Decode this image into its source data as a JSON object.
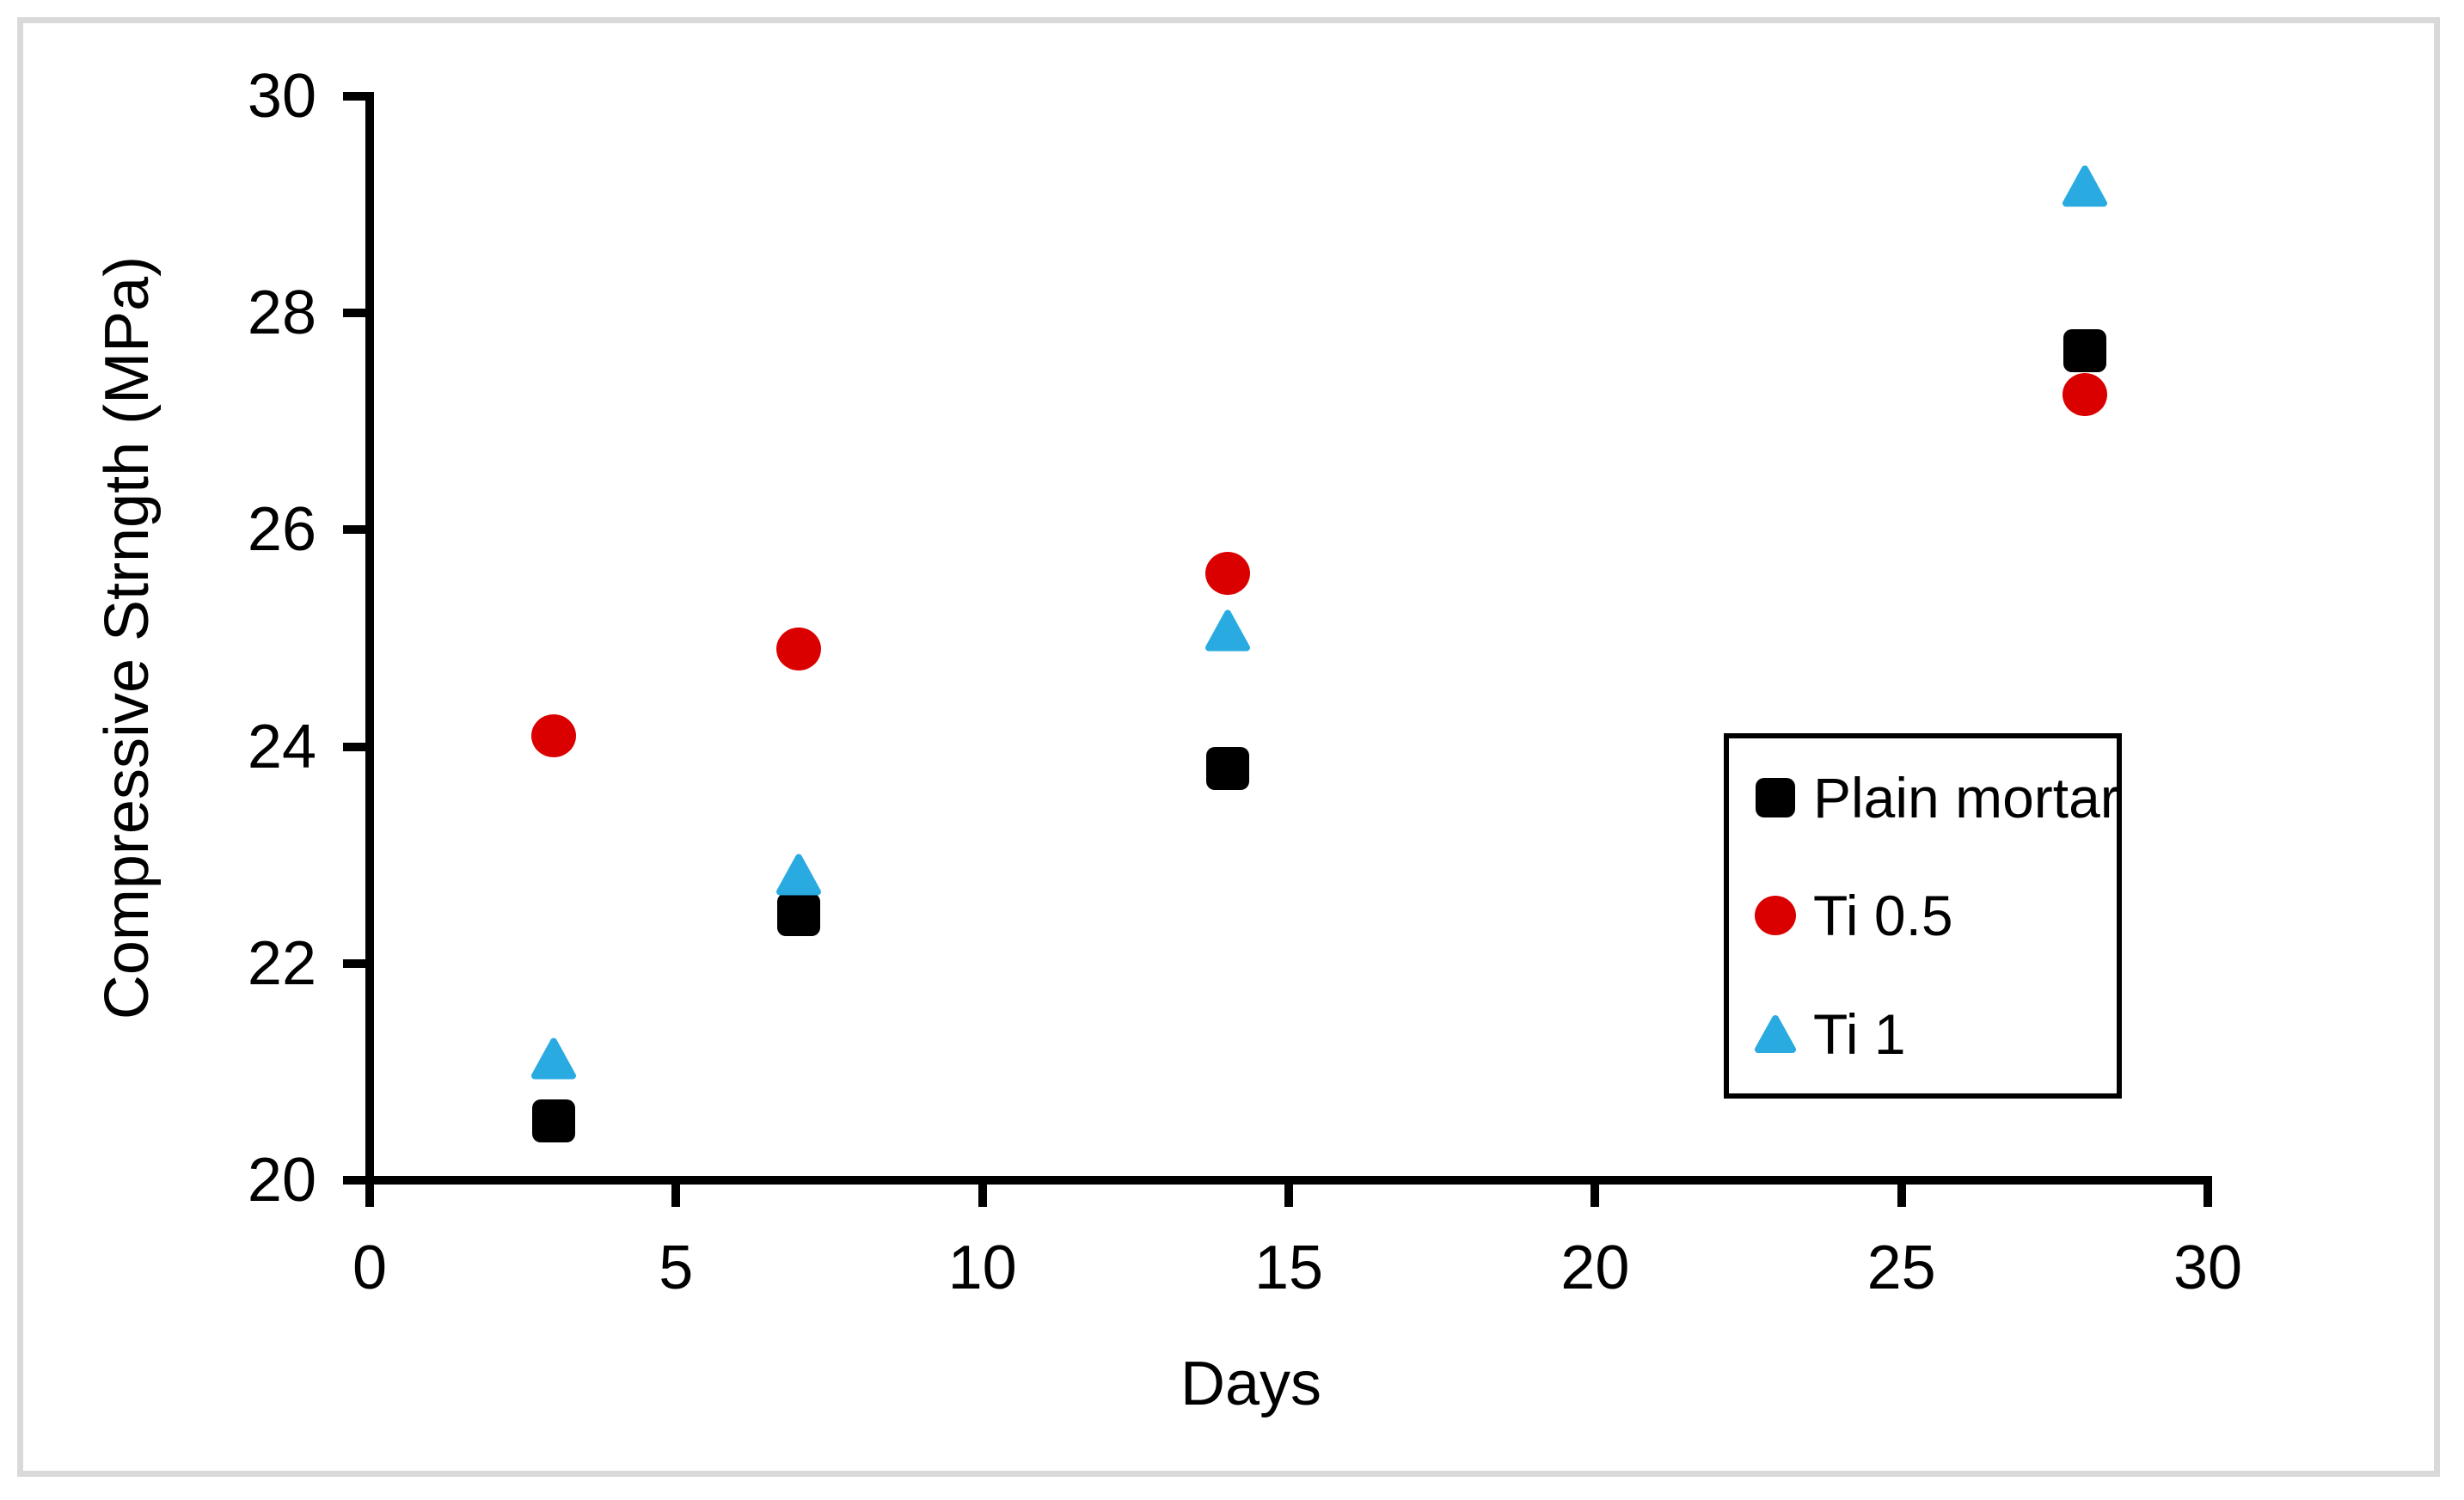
{
  "chart_data": {
    "type": "scatter",
    "title": "",
    "xlabel": "Days",
    "ylabel": "Compressive Strngth (MPa)",
    "xlim": [
      0,
      30
    ],
    "ylim": [
      20,
      30
    ],
    "x_ticks": [
      0,
      5,
      10,
      15,
      20,
      25,
      30
    ],
    "y_ticks": [
      20,
      22,
      24,
      26,
      28,
      30
    ],
    "grid": false,
    "legend_position": "inside-right",
    "series": [
      {
        "name": "Plain mortar",
        "marker": "square",
        "color": "#000000",
        "points": [
          [
            3,
            20.55
          ],
          [
            7,
            22.45
          ],
          [
            14,
            23.8
          ],
          [
            28,
            27.65
          ]
        ]
      },
      {
        "name": "Ti 0.5",
        "marker": "circle",
        "color": "#db0000",
        "points": [
          [
            3,
            24.1
          ],
          [
            7,
            24.9
          ],
          [
            14,
            25.6
          ],
          [
            28,
            27.25
          ]
        ]
      },
      {
        "name": "Ti 1",
        "marker": "triangle",
        "color": "#29abe2",
        "points": [
          [
            3,
            21.1
          ],
          [
            7,
            22.8
          ],
          [
            14,
            25.05
          ],
          [
            28,
            29.15
          ]
        ]
      }
    ]
  }
}
